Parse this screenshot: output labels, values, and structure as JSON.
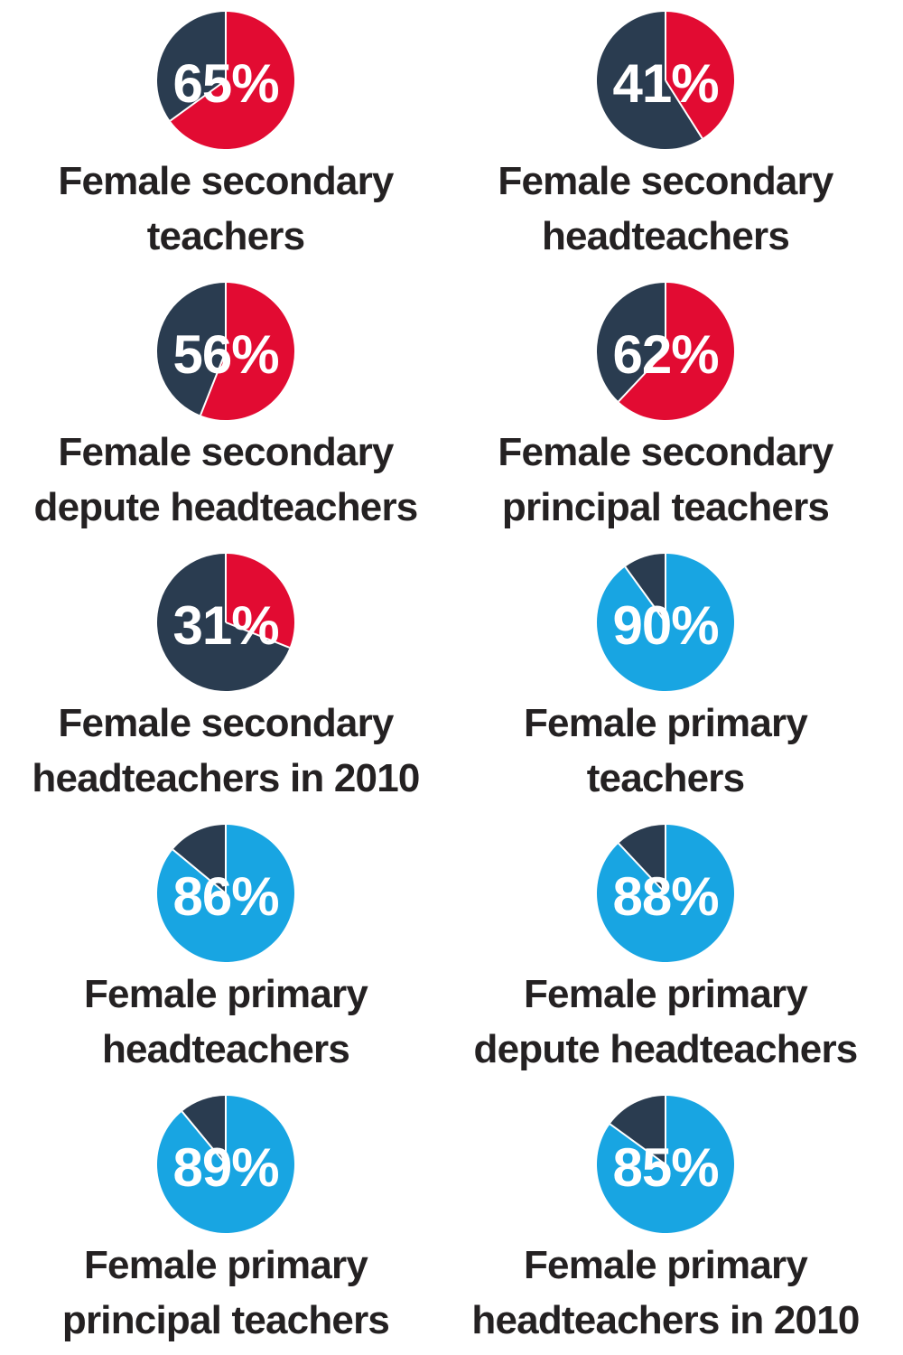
{
  "palette": {
    "female_secondary": "#e20b32",
    "female_primary": "#18a5e2",
    "male_remainder": "#2a3c50",
    "divider": "#ffffff",
    "caption_text": "#242122",
    "value_text": "#ffffff",
    "background": "#ffffff"
  },
  "chart_data": {
    "type": "pie",
    "unit": "%",
    "layout": "2 columns x 5 rows of pie charts",
    "slice_convention": "female share drawn from 12 o'clock clockwise; remainder in dark navy",
    "charts": [
      {
        "value": 65,
        "value_label": "65%",
        "theme": "secondary",
        "label": "Female secondary teachers",
        "label_line1": "Female secondary",
        "label_line2": "teachers"
      },
      {
        "value": 41,
        "value_label": "41%",
        "theme": "secondary",
        "label": "Female secondary headteachers",
        "label_line1": "Female secondary",
        "label_line2": "headteachers"
      },
      {
        "value": 56,
        "value_label": "56%",
        "theme": "secondary",
        "label": "Female secondary depute headteachers",
        "label_line1": "Female secondary",
        "label_line2": "depute headteachers"
      },
      {
        "value": 62,
        "value_label": "62%",
        "theme": "secondary",
        "label": "Female secondary principal teachers",
        "label_line1": "Female secondary",
        "label_line2": "principal teachers"
      },
      {
        "value": 31,
        "value_label": "31%",
        "theme": "secondary",
        "label": "Female secondary headteachers in 2010",
        "label_line1": "Female secondary",
        "label_line2": "headteachers in 2010"
      },
      {
        "value": 90,
        "value_label": "90%",
        "theme": "primary",
        "label": "Female primary teachers",
        "label_line1": "Female primary",
        "label_line2": "teachers"
      },
      {
        "value": 86,
        "value_label": "86%",
        "theme": "primary",
        "label": "Female primary headteachers",
        "label_line1": "Female primary",
        "label_line2": "headteachers"
      },
      {
        "value": 88,
        "value_label": "88%",
        "theme": "primary",
        "label": "Female primary depute headteachers",
        "label_line1": "Female primary",
        "label_line2": "depute headteachers"
      },
      {
        "value": 89,
        "value_label": "89%",
        "theme": "primary",
        "label": "Female primary principal teachers",
        "label_line1": "Female primary",
        "label_line2": "principal teachers"
      },
      {
        "value": 85,
        "value_label": "85%",
        "theme": "primary",
        "label": "Female primary headteachers in 2010",
        "label_line1": "Female primary",
        "label_line2": "headteachers in 2010"
      }
    ]
  }
}
